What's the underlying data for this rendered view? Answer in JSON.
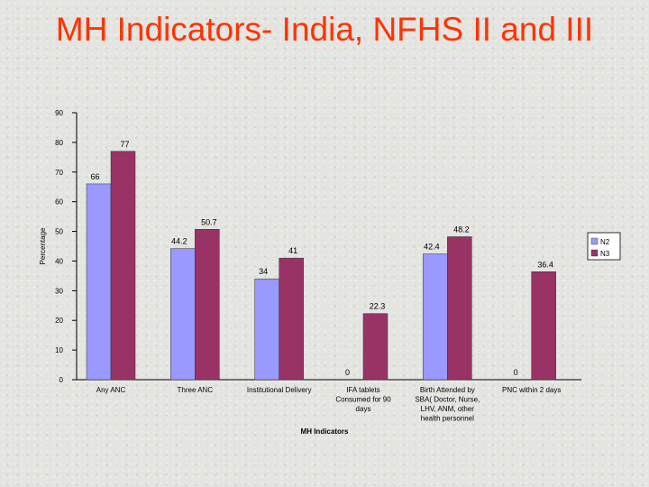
{
  "slide": {
    "title": "MH Indicators- India, NFHS II and III"
  },
  "chart_data": {
    "type": "bar",
    "title": "",
    "xlabel": "MH Indicators",
    "ylabel": "Percentage",
    "ylim": [
      0,
      90
    ],
    "yticks": [
      "0",
      "10",
      "20",
      "30",
      "40",
      "50",
      "60",
      "70",
      "80",
      "90"
    ],
    "grid": false,
    "legend_position": "right",
    "categories": [
      [
        "Any ANC"
      ],
      [
        "Three ANC"
      ],
      [
        "Institutional Delivery"
      ],
      [
        "IFA tablets",
        "Consumed for 90",
        "days"
      ],
      [
        "Birth Attended by",
        "SBA( Doctor, Nurse,",
        "LHV, ANM, other",
        "health personnel"
      ],
      [
        "PNC within 2 days"
      ]
    ],
    "series": [
      {
        "name": "N2",
        "color": "#9999ff",
        "values": [
          66,
          44.2,
          34,
          0,
          42.4,
          0
        ],
        "labels": [
          "66",
          "44.2",
          "34",
          "0",
          "42.4",
          "0"
        ]
      },
      {
        "name": "N3",
        "color": "#993366",
        "values": [
          77,
          50.7,
          41,
          22.3,
          48.2,
          36.4
        ],
        "labels": [
          "77",
          "50.7",
          "41",
          "22.3",
          "48.2",
          "36.4"
        ]
      }
    ]
  }
}
